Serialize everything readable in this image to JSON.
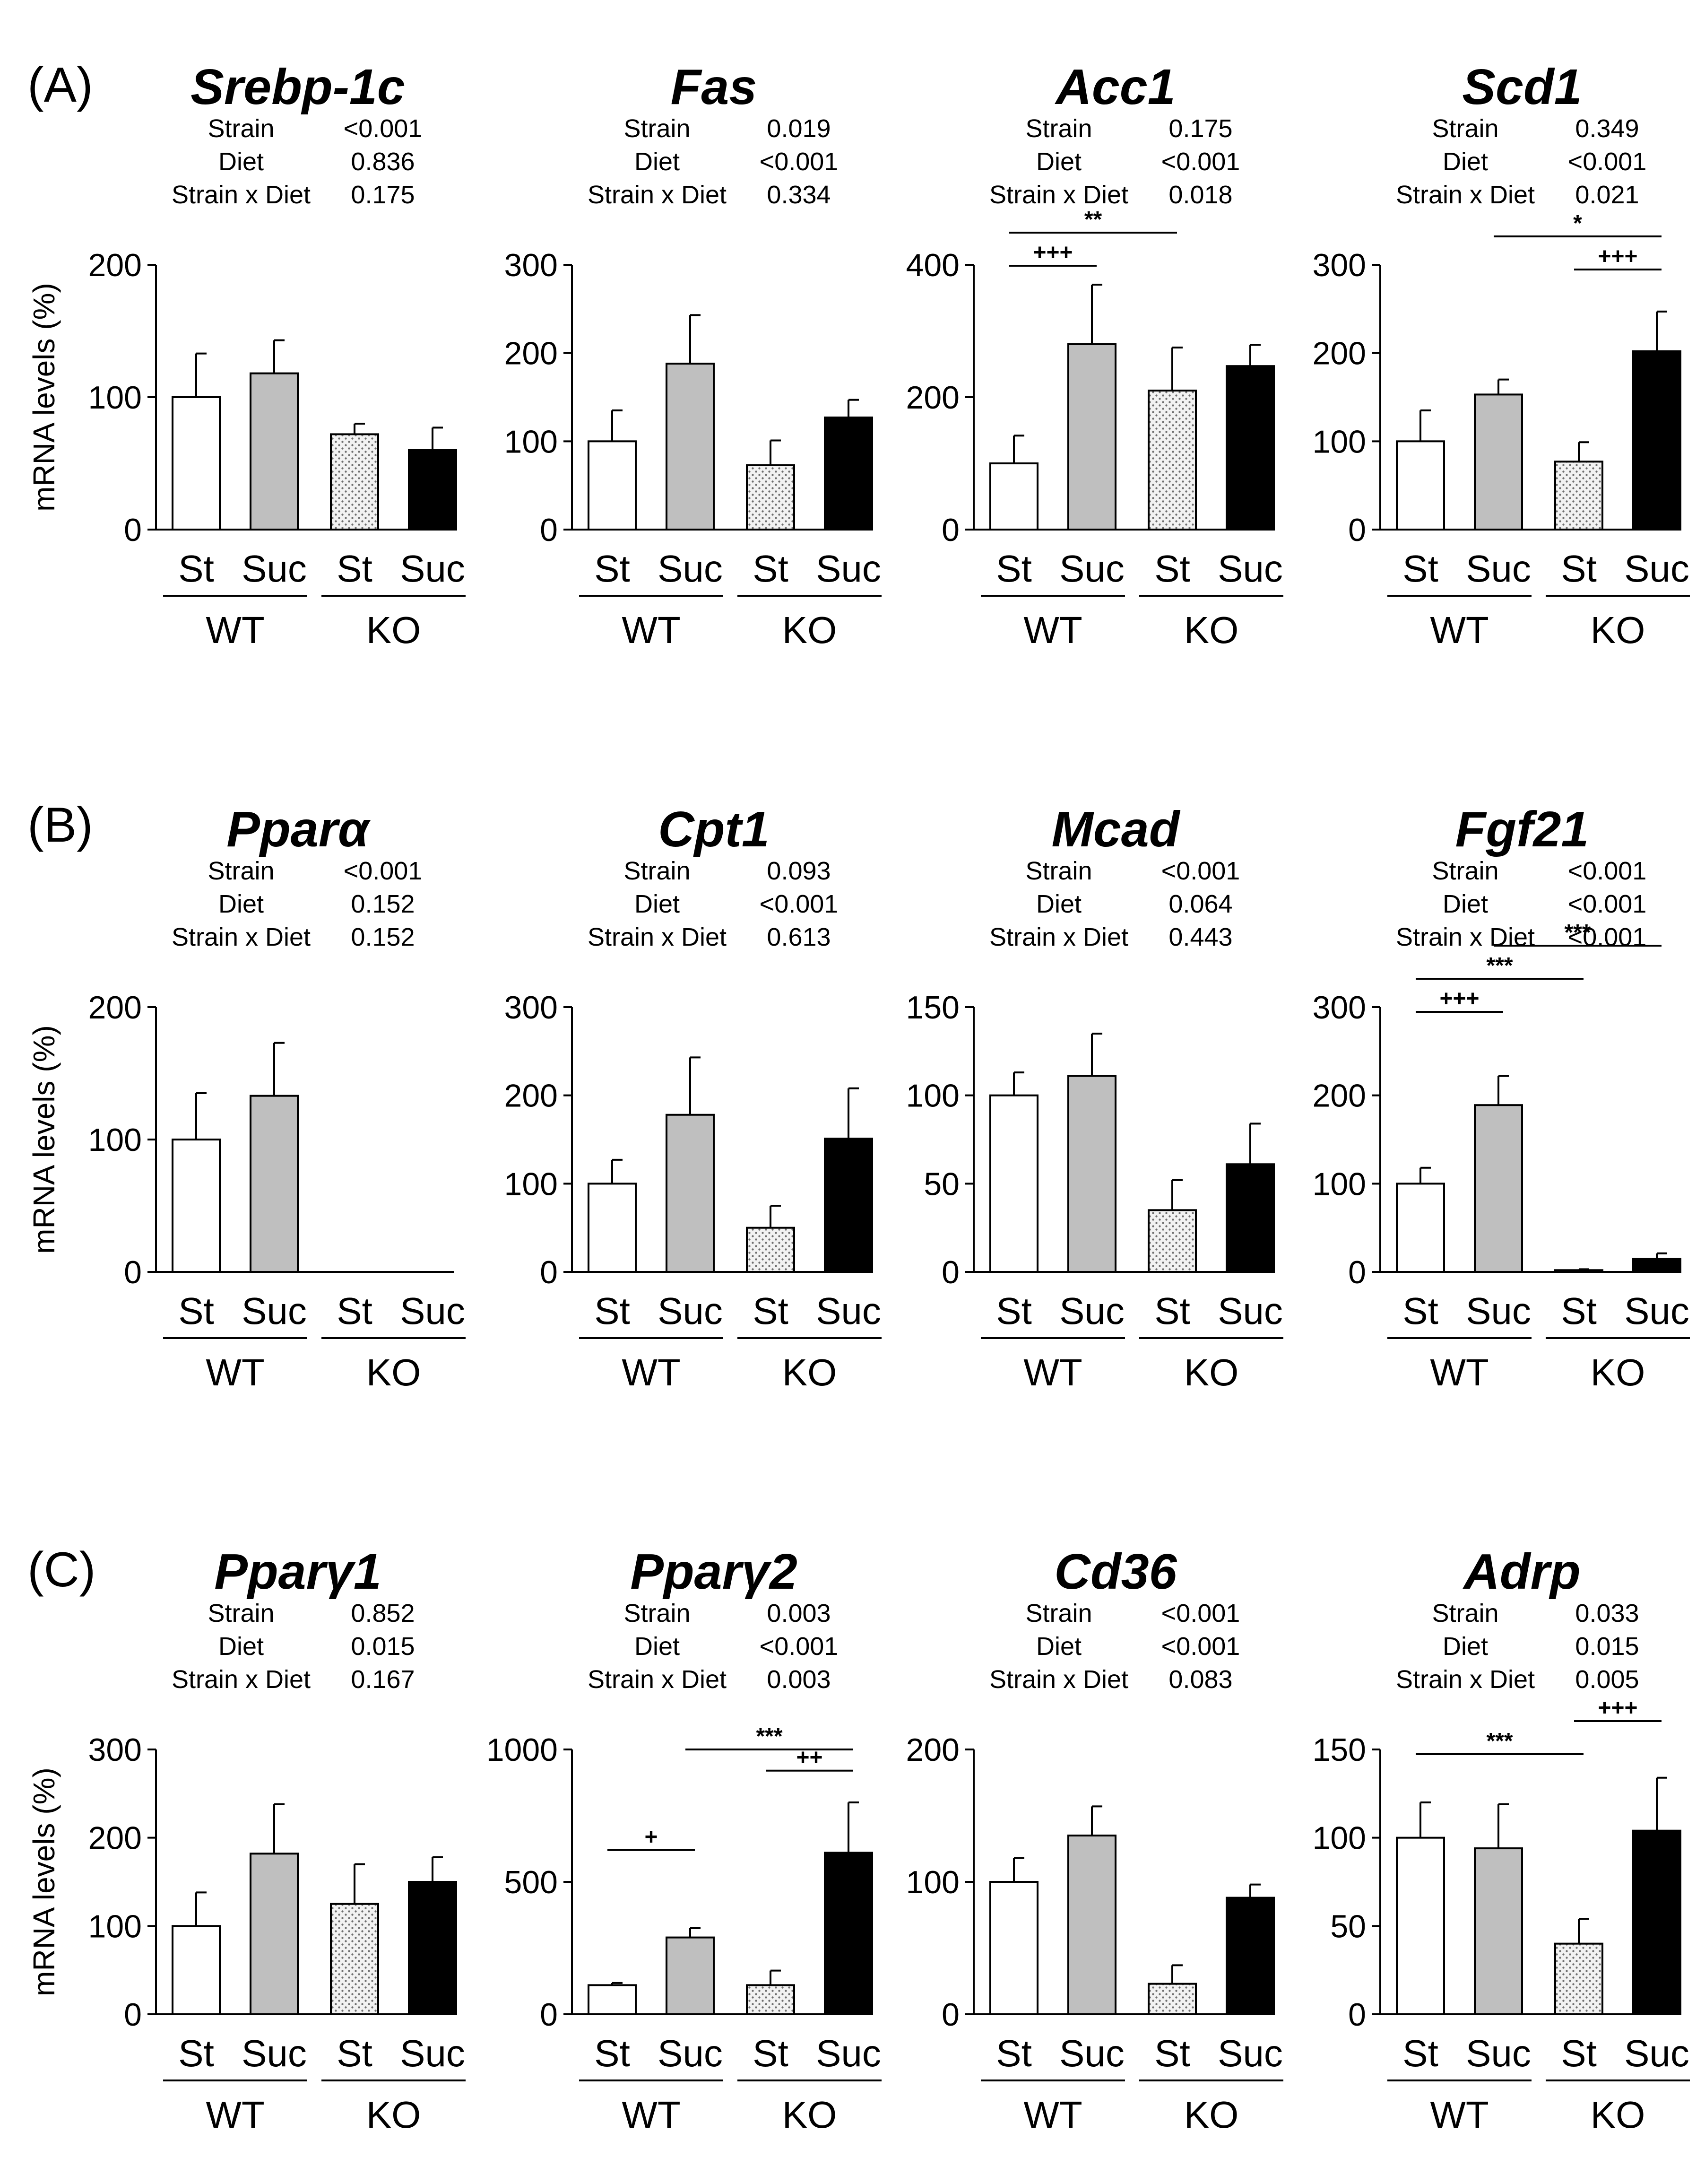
{
  "panel_labels": [
    "(A)",
    "(B)",
    "(C)"
  ],
  "colors": {
    "St_WT": "#ffffff",
    "Suc_WT": "#bfbfbf",
    "St_KO": "#e4e4e4",
    "Suc_KO": "#000000",
    "axis": "#000000"
  },
  "stat_labels": {
    "strain": "Strain",
    "diet": "Diet",
    "interaction": "Strain x Diet"
  },
  "chart_data": [
    {
      "id": "srebp1c",
      "panel": "(A)",
      "type": "bar",
      "title": "Srebp-1c",
      "ylabel": "mRNA levels (%)",
      "ylim": [
        0,
        200
      ],
      "yticks": [
        "0",
        "100",
        "200"
      ],
      "categories": [
        "St",
        "Suc",
        "St",
        "Suc"
      ],
      "groups": [
        "WT",
        "KO"
      ],
      "values": [
        100,
        118,
        72,
        60
      ],
      "errors": [
        33,
        25,
        8,
        17
      ],
      "stats": [
        "<0.001",
        "0.836",
        "0.175"
      ],
      "significance": []
    },
    {
      "id": "fas",
      "panel": "(A)",
      "type": "bar",
      "title": "Fas",
      "ylabel": "",
      "ylim": [
        0,
        300
      ],
      "yticks": [
        "0",
        "100",
        "200",
        "300"
      ],
      "categories": [
        "St",
        "Suc",
        "St",
        "Suc"
      ],
      "groups": [
        "WT",
        "KO"
      ],
      "values": [
        100,
        188,
        73,
        127
      ],
      "errors": [
        35,
        55,
        28,
        20
      ],
      "stats": [
        "0.019",
        "<0.001",
        "0.334"
      ],
      "significance": []
    },
    {
      "id": "acc1",
      "panel": "(A)",
      "type": "bar",
      "title": "Acc1",
      "ylabel": "",
      "ylim": [
        0,
        400
      ],
      "yticks": [
        "0",
        "200",
        "400"
      ],
      "categories": [
        "St",
        "Suc",
        "St",
        "Suc"
      ],
      "groups": [
        "WT",
        "KO"
      ],
      "values": [
        100,
        280,
        210,
        247
      ],
      "errors": [
        42,
        90,
        65,
        32
      ],
      "stats": [
        "0.175",
        "<0.001",
        "0.018"
      ],
      "significance": [
        {
          "from": 0,
          "to": 1,
          "label": "+++",
          "level": 0
        },
        {
          "from": 0,
          "to": 2,
          "label": "**",
          "level": 1
        }
      ]
    },
    {
      "id": "scd1",
      "panel": "(A)",
      "type": "bar",
      "title": "Scd1",
      "ylabel": "",
      "ylim": [
        0,
        300
      ],
      "yticks": [
        "0",
        "100",
        "200",
        "300"
      ],
      "categories": [
        "St",
        "Suc",
        "St",
        "Suc"
      ],
      "groups": [
        "WT",
        "KO"
      ],
      "values": [
        100,
        153,
        77,
        202
      ],
      "errors": [
        35,
        17,
        22,
        45
      ],
      "stats": [
        "0.349",
        "<0.001",
        "0.021"
      ],
      "significance": [
        {
          "from": 2,
          "to": 3,
          "label": "+++",
          "level": 0
        },
        {
          "from": 1,
          "to": 3,
          "label": "*",
          "level": 1
        }
      ]
    },
    {
      "id": "ppara",
      "panel": "(B)",
      "type": "bar",
      "title": "Pparα",
      "ylabel": "mRNA levels (%)",
      "ylim": [
        0,
        200
      ],
      "yticks": [
        "0",
        "100",
        "200"
      ],
      "categories": [
        "St",
        "Suc",
        "St",
        "Suc"
      ],
      "groups": [
        "WT",
        "KO"
      ],
      "values": [
        100,
        133,
        0,
        0
      ],
      "errors": [
        35,
        40,
        0,
        0
      ],
      "stats": [
        "<0.001",
        "0.152",
        "0.152"
      ],
      "significance": []
    },
    {
      "id": "cpt1",
      "panel": "(B)",
      "type": "bar",
      "title": "Cpt1",
      "ylabel": "",
      "ylim": [
        0,
        300
      ],
      "yticks": [
        "0",
        "100",
        "200",
        "300"
      ],
      "categories": [
        "St",
        "Suc",
        "St",
        "Suc"
      ],
      "groups": [
        "WT",
        "KO"
      ],
      "values": [
        100,
        178,
        50,
        151
      ],
      "errors": [
        27,
        65,
        25,
        57
      ],
      "stats": [
        "0.093",
        "<0.001",
        "0.613"
      ],
      "significance": []
    },
    {
      "id": "mcad",
      "panel": "(B)",
      "type": "bar",
      "title": "Mcad",
      "ylabel": "",
      "ylim": [
        0,
        150
      ],
      "yticks": [
        "0",
        "50",
        "100",
        "150"
      ],
      "categories": [
        "St",
        "Suc",
        "St",
        "Suc"
      ],
      "groups": [
        "WT",
        "KO"
      ],
      "values": [
        100,
        111,
        35,
        61
      ],
      "errors": [
        13,
        24,
        17,
        23
      ],
      "stats": [
        "<0.001",
        "0.064",
        "0.443"
      ],
      "significance": []
    },
    {
      "id": "fgf21",
      "panel": "(B)",
      "type": "bar",
      "title": "Fgf21",
      "ylabel": "",
      "ylim": [
        0,
        300
      ],
      "yticks": [
        "0",
        "100",
        "200",
        "300"
      ],
      "categories": [
        "St",
        "Suc",
        "St",
        "Suc"
      ],
      "groups": [
        "WT",
        "KO"
      ],
      "values": [
        100,
        189,
        2,
        15
      ],
      "errors": [
        18,
        33,
        1,
        6
      ],
      "stats": [
        "<0.001",
        "<0.001",
        "<0.001"
      ],
      "significance": [
        {
          "from": 0,
          "to": 1,
          "label": "+++",
          "level": 0
        },
        {
          "from": 0,
          "to": 2,
          "label": "***",
          "level": 1
        },
        {
          "from": 1,
          "to": 3,
          "label": "***",
          "level": 2
        }
      ]
    },
    {
      "id": "ppparg1",
      "panel": "(C)",
      "type": "bar",
      "title": "Pparγ1",
      "ylabel": "mRNA levels (%)",
      "ylim": [
        0,
        300
      ],
      "yticks": [
        "0",
        "100",
        "200",
        "300"
      ],
      "categories": [
        "St",
        "Suc",
        "St",
        "Suc"
      ],
      "groups": [
        "WT",
        "KO"
      ],
      "values": [
        100,
        182,
        125,
        150
      ],
      "errors": [
        38,
        56,
        45,
        28
      ],
      "stats": [
        "0.852",
        "0.015",
        "0.167"
      ],
      "significance": []
    },
    {
      "id": "pparg2",
      "panel": "(C)",
      "type": "bar",
      "title": "Pparγ2",
      "ylabel": "",
      "ylim": [
        0,
        1000
      ],
      "yticks": [
        "0",
        "500",
        "1000"
      ],
      "categories": [
        "St",
        "Suc",
        "St",
        "Suc"
      ],
      "groups": [
        "WT",
        "KO"
      ],
      "values": [
        110,
        290,
        110,
        610
      ],
      "errors": [
        8,
        35,
        55,
        190
      ],
      "stats": [
        "0.003",
        "<0.001",
        "0.003"
      ],
      "significance": [
        {
          "from": 0,
          "to": 1,
          "label": "+",
          "level": 0,
          "y": 620
        },
        {
          "from": 2,
          "to": 3,
          "label": "++",
          "level": 0,
          "y": 920
        },
        {
          "from": 1,
          "to": 3,
          "label": "***",
          "level": 1,
          "y": 1000
        }
      ]
    },
    {
      "id": "cd36",
      "panel": "(C)",
      "type": "bar",
      "title": "Cd36",
      "ylabel": "",
      "ylim": [
        0,
        200
      ],
      "yticks": [
        "0",
        "100",
        "200"
      ],
      "categories": [
        "St",
        "Suc",
        "St",
        "Suc"
      ],
      "groups": [
        "WT",
        "KO"
      ],
      "values": [
        100,
        135,
        23,
        88
      ],
      "errors": [
        18,
        22,
        14,
        10
      ],
      "stats": [
        "<0.001",
        "<0.001",
        "0.083"
      ],
      "significance": []
    },
    {
      "id": "adrp",
      "panel": "(C)",
      "type": "bar",
      "title": "Adrp",
      "ylabel": "",
      "ylim": [
        0,
        150
      ],
      "yticks": [
        "0",
        "50",
        "100",
        "150"
      ],
      "categories": [
        "St",
        "Suc",
        "St",
        "Suc"
      ],
      "groups": [
        "WT",
        "KO"
      ],
      "values": [
        100,
        94,
        40,
        104
      ],
      "errors": [
        20,
        25,
        14,
        30
      ],
      "stats": [
        "0.033",
        "0.015",
        "0.005"
      ],
      "significance": [
        {
          "from": 0,
          "to": 2,
          "label": "***",
          "level": 0
        },
        {
          "from": 2,
          "to": 3,
          "label": "+++",
          "level": 1
        }
      ]
    }
  ]
}
